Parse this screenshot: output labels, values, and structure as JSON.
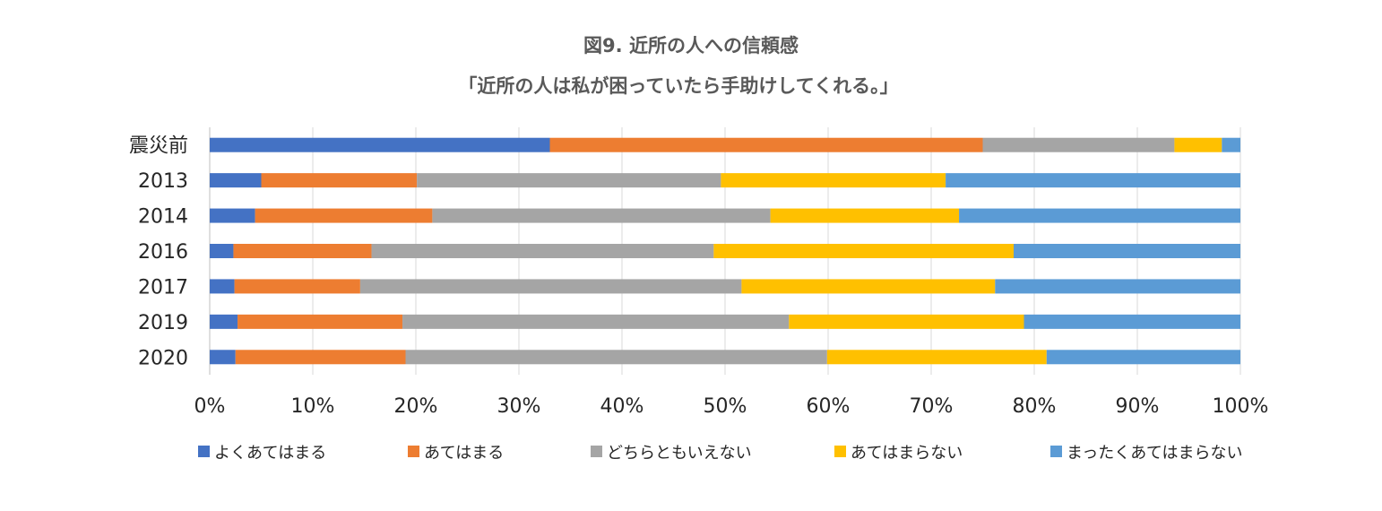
{
  "chart_data": {
    "type": "bar",
    "orientation": "horizontal",
    "stacked": true,
    "title": "図9. 近所の人への信頼感",
    "subtitle": "「近所の人は私が困っていたら手助けしてくれる。」",
    "categories": [
      "震災前",
      "2013",
      "2014",
      "2016",
      "2017",
      "2019",
      "2020"
    ],
    "series": [
      {
        "name": "よくあてはまる",
        "color": "#4472C4",
        "values": [
          33.0,
          5.0,
          4.4,
          2.3,
          2.4,
          2.7,
          2.5
        ]
      },
      {
        "name": "あてはまる",
        "color": "#ED7D31",
        "values": [
          42.0,
          15.1,
          17.2,
          13.4,
          12.2,
          16.0,
          16.5
        ]
      },
      {
        "name": "どちらともいえない",
        "color": "#A5A5A5",
        "values": [
          18.6,
          29.5,
          32.8,
          33.2,
          37.0,
          37.5,
          40.9
        ]
      },
      {
        "name": "あてはまらない",
        "color": "#FFC000",
        "values": [
          4.6,
          21.8,
          18.3,
          29.1,
          24.6,
          22.8,
          21.3
        ]
      },
      {
        "name": "まったくあてはまらない",
        "color": "#5B9BD5",
        "values": [
          1.8,
          28.6,
          27.3,
          22.0,
          23.8,
          21.0,
          18.8
        ]
      }
    ],
    "xaxis": {
      "ticks": [
        "0%",
        "10%",
        "20%",
        "30%",
        "40%",
        "50%",
        "60%",
        "70%",
        "80%",
        "90%",
        "100%"
      ],
      "range": [
        0,
        100
      ]
    },
    "grid": true,
    "legend_position": "bottom"
  }
}
